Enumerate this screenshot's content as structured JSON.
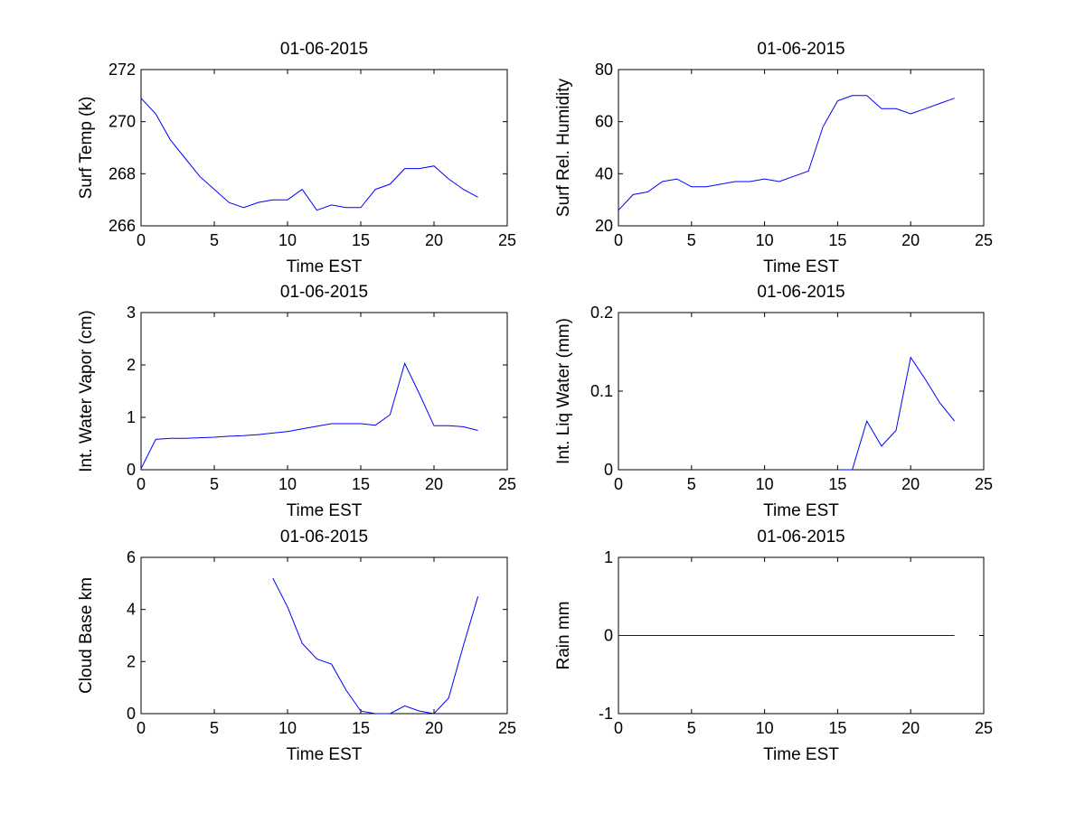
{
  "chart_data": [
    {
      "type": "line",
      "title": "01-06-2015",
      "xlabel": "Time EST",
      "ylabel": "Surf Temp (k)",
      "xlim": [
        0,
        25
      ],
      "ylim": [
        266,
        272
      ],
      "xticks": [
        0,
        5,
        10,
        15,
        20,
        25
      ],
      "yticks": [
        266,
        268,
        270,
        272
      ],
      "series": [
        {
          "name": "Surf Temp",
          "color": "#0000ff",
          "x": [
            0,
            1,
            2,
            3,
            4,
            5,
            6,
            7,
            8,
            9,
            10,
            11,
            12,
            13,
            14,
            15,
            16,
            17,
            18,
            19,
            20,
            21,
            22,
            23
          ],
          "y": [
            270.9,
            270.3,
            269.3,
            268.6,
            267.9,
            267.4,
            266.9,
            266.7,
            266.9,
            267.0,
            267.0,
            267.4,
            266.6,
            266.8,
            266.7,
            266.7,
            267.4,
            267.6,
            268.2,
            268.2,
            268.3,
            267.8,
            267.4,
            267.1
          ]
        }
      ]
    },
    {
      "type": "line",
      "title": "01-06-2015",
      "xlabel": "Time EST",
      "ylabel": "Surf Rel. Humidity",
      "xlim": [
        0,
        25
      ],
      "ylim": [
        20,
        80
      ],
      "xticks": [
        0,
        5,
        10,
        15,
        20,
        25
      ],
      "yticks": [
        20,
        40,
        60,
        80
      ],
      "series": [
        {
          "name": "Surf Rel. Humidity",
          "color": "#0000ff",
          "x": [
            0,
            1,
            2,
            3,
            4,
            5,
            6,
            7,
            8,
            9,
            10,
            11,
            12,
            13,
            14,
            15,
            16,
            17,
            18,
            19,
            20,
            21,
            22,
            23
          ],
          "y": [
            26,
            32,
            33,
            37,
            38,
            35,
            35,
            36,
            37,
            37,
            38,
            37,
            39,
            41,
            58,
            68,
            70,
            70,
            65,
            65,
            63,
            65,
            67,
            69
          ]
        }
      ]
    },
    {
      "type": "line",
      "title": "01-06-2015",
      "xlabel": "Time EST",
      "ylabel": "Int. Water Vapor (cm)",
      "xlim": [
        0,
        25
      ],
      "ylim": [
        0,
        3
      ],
      "xticks": [
        0,
        5,
        10,
        15,
        20,
        25
      ],
      "yticks": [
        0,
        1,
        2,
        3
      ],
      "series": [
        {
          "name": "Int. Water Vapor",
          "color": "#0000ff",
          "x": [
            0,
            1,
            2,
            3,
            4,
            5,
            6,
            7,
            8,
            9,
            10,
            11,
            12,
            13,
            14,
            15,
            16,
            17,
            18,
            19,
            20,
            21,
            22,
            23
          ],
          "y": [
            0.02,
            0.58,
            0.6,
            0.6,
            0.61,
            0.62,
            0.64,
            0.65,
            0.67,
            0.7,
            0.73,
            0.78,
            0.83,
            0.88,
            0.88,
            0.88,
            0.85,
            1.05,
            2.03,
            1.45,
            0.84,
            0.84,
            0.82,
            0.75
          ]
        }
      ]
    },
    {
      "type": "line",
      "title": "01-06-2015",
      "xlabel": "Time EST",
      "ylabel": "Int. Liq Water (mm)",
      "xlim": [
        0,
        25
      ],
      "ylim": [
        0,
        0.2
      ],
      "xticks": [
        0,
        5,
        10,
        15,
        20,
        25
      ],
      "yticks": [
        0,
        0.1,
        0.2
      ],
      "ytick_labels": [
        "0",
        "0.1",
        "0.2"
      ],
      "series": [
        {
          "name": "Int. Liq Water",
          "color": "#0000ff",
          "x": [
            15,
            16,
            17,
            18,
            19,
            20,
            21,
            22,
            23
          ],
          "y": [
            0.0,
            0.0,
            0.062,
            0.03,
            0.05,
            0.143,
            0.115,
            0.085,
            0.062
          ]
        }
      ]
    },
    {
      "type": "line",
      "title": "01-06-2015",
      "xlabel": "Time EST",
      "ylabel": "Cloud Base km",
      "xlim": [
        0,
        25
      ],
      "ylim": [
        0,
        6
      ],
      "xticks": [
        0,
        5,
        10,
        15,
        20,
        25
      ],
      "yticks": [
        0,
        2,
        4,
        6
      ],
      "series": [
        {
          "name": "Cloud Base",
          "color": "#0000ff",
          "x": [
            9,
            10,
            11,
            12,
            13,
            14,
            15,
            16,
            17,
            18,
            19,
            20,
            21,
            22,
            23
          ],
          "y": [
            5.2,
            4.1,
            2.7,
            2.1,
            1.9,
            0.9,
            0.1,
            0.0,
            0.0,
            0.3,
            0.1,
            0.0,
            0.6,
            2.6,
            4.5
          ]
        }
      ]
    },
    {
      "type": "line",
      "title": "01-06-2015",
      "xlabel": "Time EST",
      "ylabel": "Rain mm",
      "xlim": [
        0,
        25
      ],
      "ylim": [
        -1,
        1
      ],
      "xticks": [
        0,
        5,
        10,
        15,
        20,
        25
      ],
      "yticks": [
        -1,
        0,
        1
      ],
      "series": [
        {
          "name": "Rain",
          "color": "#0000ff",
          "x": [
            0,
            1,
            2,
            3,
            4,
            5,
            6,
            7,
            8,
            9,
            10,
            11,
            12,
            13,
            14,
            15,
            16,
            17,
            18,
            19,
            20,
            21,
            22,
            23
          ],
          "y": [
            0,
            0,
            0,
            0,
            0,
            0,
            0,
            0,
            0,
            0,
            0,
            0,
            0,
            0,
            0,
            0,
            0,
            0,
            0,
            0,
            0,
            0,
            0,
            0
          ]
        }
      ]
    }
  ]
}
